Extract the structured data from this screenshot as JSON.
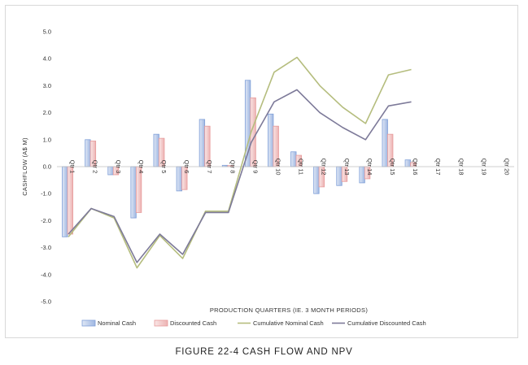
{
  "caption": "FIGURE 22-4 CASH FLOW AND NPV",
  "chart_data": {
    "type": "bar",
    "categories": [
      "Qtr 1",
      "Qtr 2",
      "Qtr 3",
      "Qtr 4",
      "Qtr 5",
      "Qtr 6",
      "Qtr 7",
      "Qtr 8",
      "Qtr 9",
      "Qtr 10",
      "Qtr 11",
      "Qtr 12",
      "Qtr 13",
      "Qtr 14",
      "Qtr 15",
      "Qtr 16",
      "Qtr 17",
      "Qtr 18",
      "Qtr 19",
      "Qtr 20"
    ],
    "xlabel": "PRODUCTION QUARTERS (IE. 3 MONTH PERIODS)",
    "ylabel": "CASHFLOW (A$ M)",
    "ylim": [
      -5.0,
      5.0
    ],
    "yticks": [
      "5.0",
      "4.0",
      "3.0",
      "2.0",
      "1.0",
      "0.0",
      "-1.0",
      "-2.0",
      "-3.0",
      "-4.0",
      "-5.0"
    ],
    "grid": false,
    "legend_position": "bottom",
    "series": [
      {
        "name": "Nominal Cash",
        "kind": "bar",
        "color": "#7f9fd8",
        "values": [
          -2.6,
          1.0,
          -0.3,
          -1.9,
          1.2,
          -0.9,
          1.75,
          0.05,
          3.2,
          1.95,
          0.55,
          -1.0,
          -0.7,
          -0.6,
          1.75,
          0.25,
          null,
          null,
          null,
          null
        ]
      },
      {
        "name": "Discounted Cash",
        "kind": "bar",
        "color": "#e79a9a",
        "values": [
          -2.5,
          0.95,
          -0.3,
          -1.7,
          1.05,
          -0.85,
          1.5,
          0.04,
          2.55,
          1.5,
          0.42,
          -0.75,
          -0.55,
          -0.45,
          1.2,
          0.15,
          null,
          null,
          null,
          null
        ]
      },
      {
        "name": "Cumulative Nominal Cash",
        "kind": "line",
        "color": "#b5bd7e",
        "values": [
          -2.6,
          -1.55,
          -1.9,
          -3.75,
          -2.55,
          -3.4,
          -1.65,
          -1.65,
          1.3,
          3.5,
          4.05,
          3.0,
          2.2,
          1.6,
          3.4,
          3.6,
          null,
          null,
          null,
          null
        ]
      },
      {
        "name": "Cumulative Discounted Cash",
        "kind": "line",
        "color": "#7d7a99",
        "values": [
          -2.5,
          -1.55,
          -1.85,
          -3.55,
          -2.5,
          -3.25,
          -1.7,
          -1.7,
          0.9,
          2.4,
          2.85,
          2.0,
          1.45,
          1.0,
          2.25,
          2.4,
          null,
          null,
          null,
          null
        ]
      }
    ]
  }
}
